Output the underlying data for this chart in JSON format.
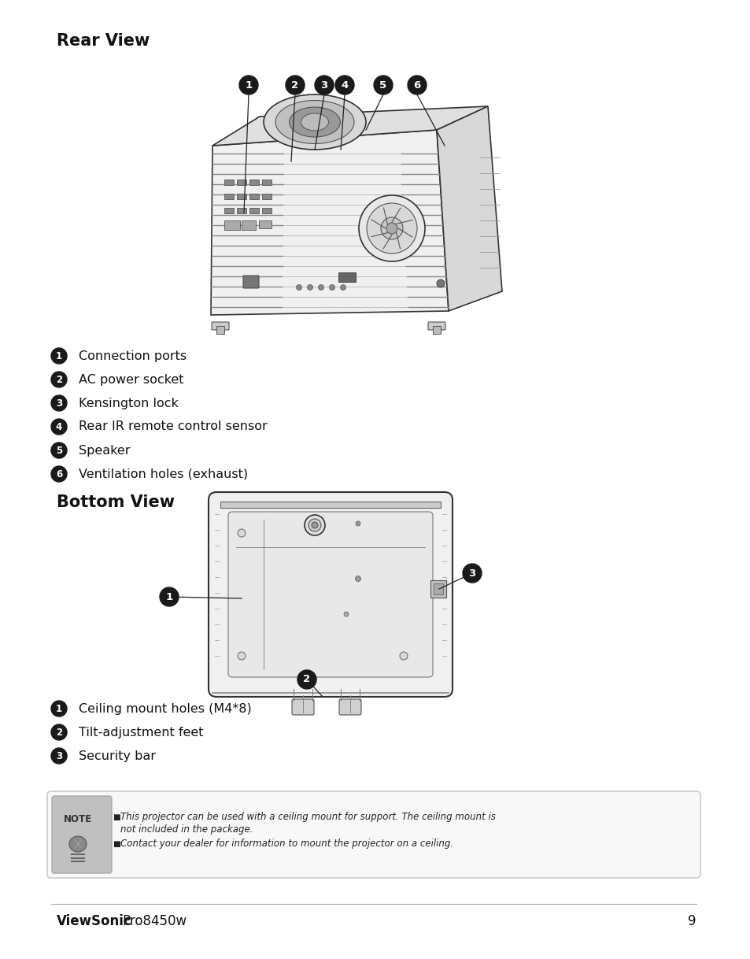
{
  "background_color": "#ffffff",
  "rear_view_title": "Rear View",
  "rear_items": [
    {
      "num": "1",
      "text": "Connection ports"
    },
    {
      "num": "2",
      "text": "AC power socket"
    },
    {
      "num": "3",
      "text": "Kensington lock"
    },
    {
      "num": "4",
      "text": "Rear IR remote control sensor"
    },
    {
      "num": "5",
      "text": "Speaker"
    },
    {
      "num": "6",
      "text": "Ventilation holes (exhaust)"
    }
  ],
  "bottom_view_title": "Bottom View",
  "bottom_items": [
    {
      "num": "1",
      "text": "Ceiling mount holes (M4*8)"
    },
    {
      "num": "2",
      "text": "Tilt-adjustment feet"
    },
    {
      "num": "3",
      "text": "Security bar"
    }
  ],
  "note_line1": "This projector can be used with a ceiling mount for support. The ceiling mount is",
  "note_line2": "not included in the package.",
  "note_line3": "Contact your dealer for information to mount the projector on a ceiling.",
  "footer_brand": "ViewSonic",
  "footer_model": "Pro8450w",
  "footer_page": "9",
  "num_circle_color": "#1a1a1a",
  "num_text_color": "#ffffff",
  "line_color": "#222222",
  "text_color": "#111111"
}
